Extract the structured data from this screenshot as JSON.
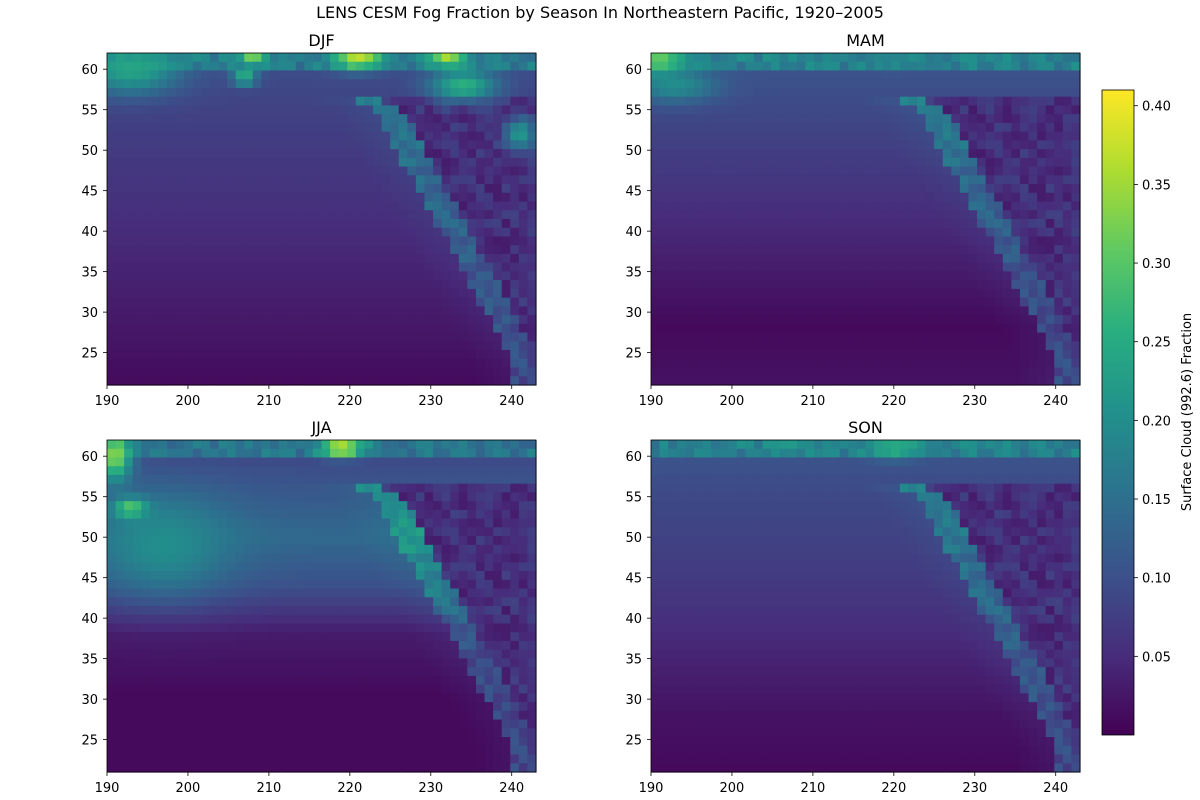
{
  "chart_data": {
    "type": "heatmap",
    "title": "LENS CESM Fog Fraction by Season In Northeastern Pacific, 1920–2005",
    "x_ticks": [
      "190",
      "200",
      "210",
      "220",
      "230",
      "240"
    ],
    "y_ticks": [
      "25",
      "30",
      "35",
      "40",
      "45",
      "50",
      "55",
      "60"
    ],
    "xlim": [
      190,
      243
    ],
    "ylim": [
      21,
      62
    ],
    "grid": false,
    "colormap": "viridis",
    "colorbar": {
      "label": "Surface Cloud (992.6) Fraction",
      "range": [
        0.0,
        0.41
      ],
      "ticks": [
        "0.05",
        "0.10",
        "0.15",
        "0.20",
        "0.25",
        "0.30",
        "0.35",
        "0.40"
      ]
    },
    "panels": [
      {
        "title": "DJF",
        "ocean_gradient": [
          [
            21,
            0.01
          ],
          [
            25,
            0.02
          ],
          [
            35,
            0.04
          ],
          [
            45,
            0.06
          ],
          [
            55,
            0.08
          ],
          [
            62,
            0.1
          ]
        ],
        "hotspots": [
          {
            "lon": 193,
            "lat": 60,
            "lon_r": 6,
            "lat_r": 3,
            "value": 0.24
          },
          {
            "lon": 221,
            "lat": 61.5,
            "lon_r": 3,
            "lat_r": 1.5,
            "value": 0.37
          },
          {
            "lon": 232,
            "lat": 61.5,
            "lon_r": 2,
            "lat_r": 1.2,
            "value": 0.36
          },
          {
            "lon": 208,
            "lat": 61.5,
            "lon_r": 1.5,
            "lat_r": 1.0,
            "value": 0.33
          },
          {
            "lon": 234,
            "lat": 58,
            "lon_r": 4,
            "lat_r": 2,
            "value": 0.26
          },
          {
            "lon": 241,
            "lat": 52,
            "lon_r": 2,
            "lat_r": 2,
            "value": 0.22
          },
          {
            "lon": 207,
            "lat": 59,
            "lon_r": 1.5,
            "lat_r": 1.0,
            "value": 0.27
          }
        ]
      },
      {
        "title": "MAM",
        "ocean_gradient": [
          [
            21,
            0.02
          ],
          [
            28,
            0.01
          ],
          [
            35,
            0.03
          ],
          [
            45,
            0.06
          ],
          [
            55,
            0.09
          ],
          [
            62,
            0.11
          ]
        ],
        "hotspots": [
          {
            "lon": 191,
            "lat": 61,
            "lon_r": 3,
            "lat_r": 2,
            "value": 0.32
          },
          {
            "lon": 193,
            "lat": 58,
            "lon_r": 5,
            "lat_r": 2,
            "value": 0.2
          },
          {
            "lon": 220,
            "lat": 61,
            "lon_r": 3,
            "lat_r": 1,
            "value": 0.19
          }
        ]
      },
      {
        "title": "JJA",
        "ocean_gradient": [
          [
            21,
            0.01
          ],
          [
            30,
            0.01
          ],
          [
            38,
            0.03
          ],
          [
            44,
            0.1
          ],
          [
            50,
            0.14
          ],
          [
            58,
            0.1
          ],
          [
            62,
            0.08
          ]
        ],
        "hotspots": [
          {
            "lon": 191,
            "lat": 60,
            "lon_r": 2,
            "lat_r": 3,
            "value": 0.34
          },
          {
            "lon": 193,
            "lat": 53.5,
            "lon_r": 2,
            "lat_r": 1.2,
            "value": 0.38
          },
          {
            "lon": 197,
            "lat": 49,
            "lon_r": 8,
            "lat_r": 6,
            "value": 0.2
          },
          {
            "lon": 219,
            "lat": 61,
            "lon_r": 2.5,
            "lat_r": 1,
            "value": 0.41
          }
        ]
      },
      {
        "title": "SON",
        "ocean_gradient": [
          [
            21,
            0.01
          ],
          [
            28,
            0.02
          ],
          [
            35,
            0.04
          ],
          [
            45,
            0.07
          ],
          [
            55,
            0.09
          ],
          [
            62,
            0.11
          ]
        ],
        "hotspots": [
          {
            "lon": 220,
            "lat": 61,
            "lon_r": 3,
            "lat_r": 1.2,
            "value": 0.26
          },
          {
            "lon": 207,
            "lat": 61.5,
            "lon_r": 2,
            "lat_r": 1,
            "value": 0.22
          }
        ]
      }
    ]
  }
}
